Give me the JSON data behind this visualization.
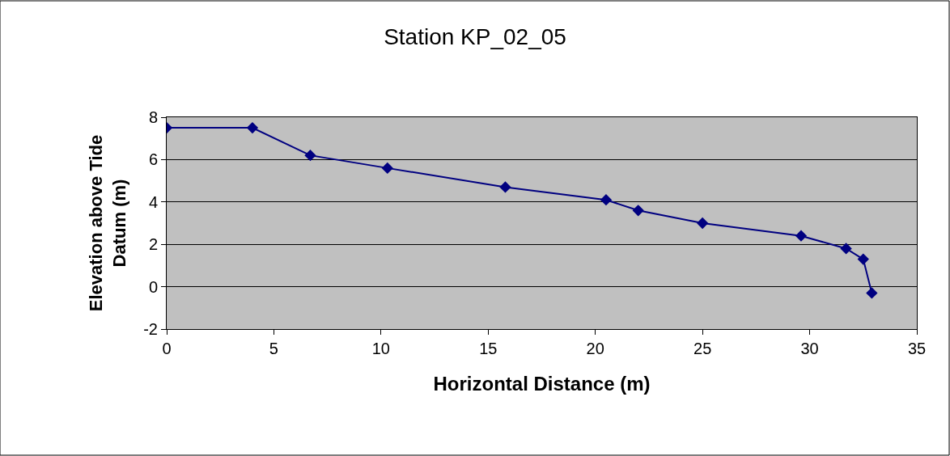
{
  "chart_data": {
    "type": "line",
    "title": "Station KP_02_05",
    "xlabel": "Horizontal Distance (m)",
    "ylabel": "Elevation above Tide\nDatum (m)",
    "x": [
      0,
      4.0,
      6.7,
      10.3,
      15.8,
      20.5,
      22.0,
      25.0,
      29.6,
      31.7,
      32.5,
      32.9
    ],
    "series": [
      {
        "color": "#000080",
        "values": [
          7.5,
          7.5,
          6.2,
          5.6,
          4.7,
          4.1,
          3.6,
          3.0,
          2.4,
          1.8,
          1.3,
          -0.3
        ]
      }
    ],
    "xlim": [
      0,
      35
    ],
    "xticks": [
      0,
      5,
      10,
      15,
      20,
      25,
      30,
      35
    ],
    "ylim": [
      -2,
      8
    ],
    "yticks": [
      -2,
      0,
      2,
      4,
      6,
      8
    ],
    "grid": "y",
    "legend": false,
    "marker": "diamond",
    "line_style": "solid"
  }
}
